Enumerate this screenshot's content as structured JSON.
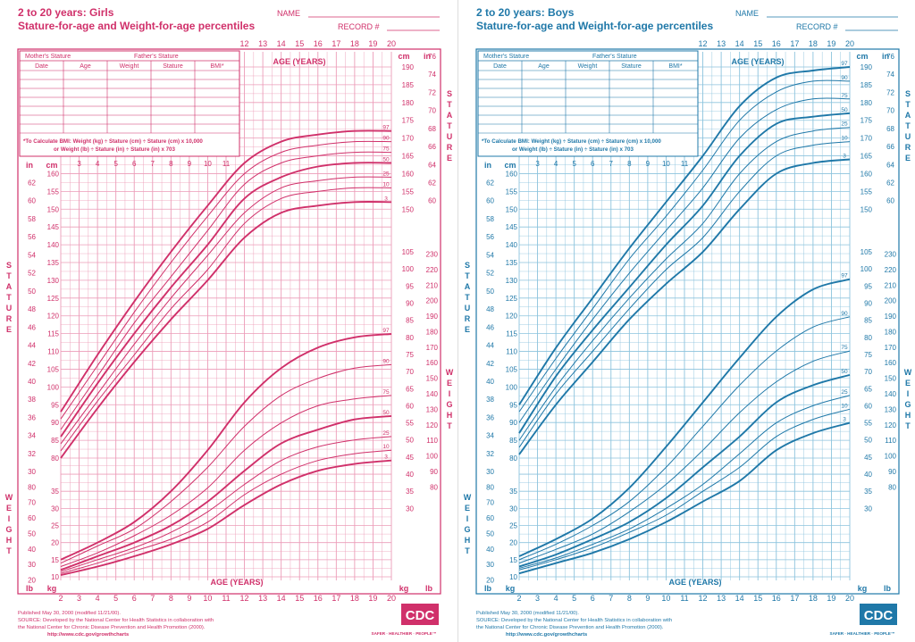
{
  "charts": [
    {
      "key": "girls",
      "title_line1": "2 to 20 years: Girls",
      "title_line2": "Stature-for-age and Weight-for-age percentiles",
      "name_label": "NAME",
      "record_label": "RECORD #",
      "table_group_headers": [
        "Mother's Stature",
        "Father's Stature"
      ],
      "table_headers": [
        "Date",
        "Age",
        "Weight",
        "Stature",
        "BMI*"
      ],
      "bmi_note_line1": "*To Calculate BMI: Weight (kg) ÷ Stature (cm) ÷ Stature (cm) x 10,000",
      "bmi_note_line2": "or Weight (lb) ÷ Stature (in) ÷ Stature (in) x 703",
      "footer_line1": "Published May 30, 2000 (modified 11/21/00).",
      "footer_line2": "SOURCE: Developed by the National Center for Health Statistics in collaboration with",
      "footer_line3": "the National Center for Chronic Disease Prevention and Health Promotion (2000).",
      "footer_line4": "http://www.cdc.gov/growthcharts",
      "logo_text": "CDC",
      "tagline": "SAFER · HEALTHIER · PEOPLE™",
      "color": "#d0306a",
      "grid_color": "#ec9cb8"
    },
    {
      "key": "boys",
      "title_line1": "2 to 20 years: Boys",
      "title_line2": "Stature-for-age and Weight-for-age percentiles",
      "name_label": "NAME",
      "record_label": "RECORD #",
      "table_group_headers": [
        "Mother's Stature",
        "Father's Stature"
      ],
      "table_headers": [
        "Date",
        "Age",
        "Weight",
        "Stature",
        "BMI*"
      ],
      "bmi_note_line1": "*To Calculate BMI: Weight (kg) ÷ Stature (cm) ÷ Stature (cm) x 10,000",
      "bmi_note_line2": "or Weight (lb) ÷ Stature (in) ÷ Stature (in) x 703",
      "footer_line1": "Published May 30, 2000 (modified 11/21/00).",
      "footer_line2": "SOURCE: Developed by the National Center for Health Statistics in collaboration with",
      "footer_line3": "the National Center for Chronic Disease Prevention and Health Promotion (2000).",
      "footer_line4": "http://www.cdc.gov/growthcharts",
      "logo_text": "CDC",
      "tagline": "SAFER · HEALTHIER · PEOPLE™",
      "color": "#1f78a8",
      "grid_color": "#8cc3dd"
    }
  ],
  "chart_data": [
    {
      "type": "line",
      "title": "2 to 20 years: Girls Stature-for-age and Weight-for-age percentiles",
      "xlabel": "AGE (YEARS)",
      "x_ticks": [
        2,
        3,
        4,
        5,
        6,
        7,
        8,
        9,
        10,
        11,
        12,
        13,
        14,
        15,
        16,
        17,
        18,
        19,
        20
      ],
      "x": [
        2,
        4,
        6,
        8,
        10,
        12,
        14,
        16,
        18,
        20
      ],
      "stature_label": "STATURE",
      "weight_label": "WEIGHT",
      "stature_cm_range": [
        80,
        190
      ],
      "weight_kg_range": [
        10,
        105
      ],
      "cm_ticks": [
        80,
        85,
        90,
        95,
        100,
        105,
        110,
        115,
        120,
        125,
        130,
        135,
        140,
        145,
        150,
        155,
        160,
        165,
        170,
        175,
        180,
        185,
        190
      ],
      "in_ticks": [
        30,
        32,
        34,
        36,
        38,
        40,
        42,
        44,
        46,
        48,
        50,
        52,
        54,
        56,
        58,
        60,
        62,
        64,
        66,
        68,
        70,
        72,
        74,
        76
      ],
      "kg_ticks": [
        10,
        15,
        20,
        25,
        30,
        35,
        40,
        45,
        50,
        55,
        60,
        65,
        70,
        75,
        80,
        85,
        90,
        95,
        100,
        105
      ],
      "lb_ticks": [
        20,
        30,
        40,
        50,
        60,
        70,
        80,
        90,
        100,
        110,
        120,
        130,
        140,
        150,
        160,
        170,
        180,
        190,
        200,
        210,
        220,
        230
      ],
      "stature_series": [
        {
          "name": "97",
          "values": [
            93,
            109,
            124,
            138,
            151,
            163,
            169,
            171,
            172,
            172
          ]
        },
        {
          "name": "90",
          "values": [
            91,
            106,
            121,
            135,
            148,
            160,
            166,
            168,
            169,
            169
          ]
        },
        {
          "name": "75",
          "values": [
            88,
            103,
            118,
            131,
            144,
            157,
            163,
            165,
            166,
            166
          ]
        },
        {
          "name": "50",
          "values": [
            86,
            101,
            115,
            128,
            140,
            153,
            159,
            162,
            163,
            163
          ]
        },
        {
          "name": "25",
          "values": [
            84,
            98,
            112,
            125,
            137,
            149,
            156,
            158,
            159,
            159
          ]
        },
        {
          "name": "10",
          "values": [
            82,
            96,
            109,
            122,
            133,
            146,
            153,
            155,
            156,
            156
          ]
        },
        {
          "name": "3",
          "values": [
            80,
            94,
            107,
            119,
            130,
            142,
            149,
            151,
            152,
            152
          ]
        }
      ],
      "weight_series": [
        {
          "name": "97",
          "values": [
            15,
            20,
            26,
            35,
            47,
            61,
            71,
            77,
            80,
            81
          ]
        },
        {
          "name": "90",
          "values": [
            14,
            19,
            24,
            32,
            42,
            54,
            63,
            68,
            71,
            72
          ]
        },
        {
          "name": "75",
          "values": [
            13,
            17,
            22,
            28,
            36,
            47,
            55,
            60,
            62,
            63
          ]
        },
        {
          "name": "50",
          "values": [
            12,
            16,
            20,
            25,
            32,
            41,
            49,
            53,
            56,
            57
          ]
        },
        {
          "name": "25",
          "values": [
            11.5,
            15,
            18.5,
            23,
            29,
            37,
            44,
            48,
            50,
            51
          ]
        },
        {
          "name": "10",
          "values": [
            11,
            14,
            17.5,
            21,
            26,
            34,
            40,
            44,
            46,
            47
          ]
        },
        {
          "name": "3",
          "values": [
            10.5,
            13,
            16,
            19.5,
            24,
            31,
            37,
            41,
            43,
            44
          ]
        }
      ]
    },
    {
      "type": "line",
      "title": "2 to 20 years: Boys Stature-for-age and Weight-for-age percentiles",
      "xlabel": "AGE (YEARS)",
      "x_ticks": [
        2,
        3,
        4,
        5,
        6,
        7,
        8,
        9,
        10,
        11,
        12,
        13,
        14,
        15,
        16,
        17,
        18,
        19,
        20
      ],
      "x": [
        2,
        4,
        6,
        8,
        10,
        12,
        14,
        16,
        18,
        20
      ],
      "stature_label": "STATURE",
      "weight_label": "WEIGHT",
      "stature_cm_range": [
        80,
        190
      ],
      "weight_kg_range": [
        10,
        105
      ],
      "cm_ticks": [
        80,
        85,
        90,
        95,
        100,
        105,
        110,
        115,
        120,
        125,
        130,
        135,
        140,
        145,
        150,
        155,
        160,
        165,
        170,
        175,
        180,
        185,
        190
      ],
      "in_ticks": [
        30,
        32,
        34,
        36,
        38,
        40,
        42,
        44,
        46,
        48,
        50,
        52,
        54,
        56,
        58,
        60,
        62,
        64,
        66,
        68,
        70,
        72,
        74,
        76
      ],
      "kg_ticks": [
        10,
        15,
        20,
        25,
        30,
        35,
        40,
        45,
        50,
        55,
        60,
        65,
        70,
        75,
        80,
        85,
        90,
        95,
        100,
        105
      ],
      "lb_ticks": [
        20,
        30,
        40,
        50,
        60,
        70,
        80,
        90,
        100,
        110,
        120,
        130,
        140,
        150,
        160,
        170,
        180,
        190,
        200,
        210,
        220,
        230
      ],
      "stature_series": [
        {
          "name": "97",
          "values": [
            95,
            111,
            125,
            139,
            152,
            165,
            179,
            187,
            189,
            190
          ]
        },
        {
          "name": "90",
          "values": [
            93,
            108,
            122,
            136,
            148,
            161,
            175,
            183,
            186,
            186
          ]
        },
        {
          "name": "75",
          "values": [
            90,
            105,
            119,
            132,
            144,
            156,
            170,
            178,
            181,
            181
          ]
        },
        {
          "name": "50",
          "values": [
            87,
            103,
            116,
            128,
            140,
            151,
            165,
            174,
            176,
            177
          ]
        },
        {
          "name": "25",
          "values": [
            85,
            100,
            113,
            125,
            136,
            146,
            160,
            169,
            172,
            173
          ]
        },
        {
          "name": "10",
          "values": [
            83,
            98,
            110,
            122,
            133,
            142,
            155,
            165,
            168,
            169
          ]
        },
        {
          "name": "3",
          "values": [
            81,
            95,
            107,
            119,
            129,
            138,
            150,
            160,
            163,
            164
          ]
        }
      ],
      "weight_series": [
        {
          "name": "97",
          "values": [
            16,
            21,
            27,
            36,
            48,
            61,
            74,
            86,
            94,
            97
          ]
        },
        {
          "name": "90",
          "values": [
            15,
            19.5,
            25,
            32,
            42,
            54,
            66,
            76,
            83,
            86
          ]
        },
        {
          "name": "75",
          "values": [
            14,
            18,
            22.5,
            29,
            37,
            47,
            58,
            67,
            73,
            76
          ]
        },
        {
          "name": "50",
          "values": [
            13,
            16.5,
            21,
            26,
            33,
            42,
            51,
            61,
            66,
            69
          ]
        },
        {
          "name": "25",
          "values": [
            12.5,
            15.5,
            19.5,
            24,
            30,
            37,
            46,
            55,
            60,
            63
          ]
        },
        {
          "name": "10",
          "values": [
            12,
            15,
            18.5,
            23,
            28,
            35,
            42,
            51,
            56,
            59
          ]
        },
        {
          "name": "3",
          "values": [
            11,
            14,
            17,
            21,
            26,
            32,
            38,
            47,
            52,
            55
          ]
        }
      ]
    }
  ]
}
